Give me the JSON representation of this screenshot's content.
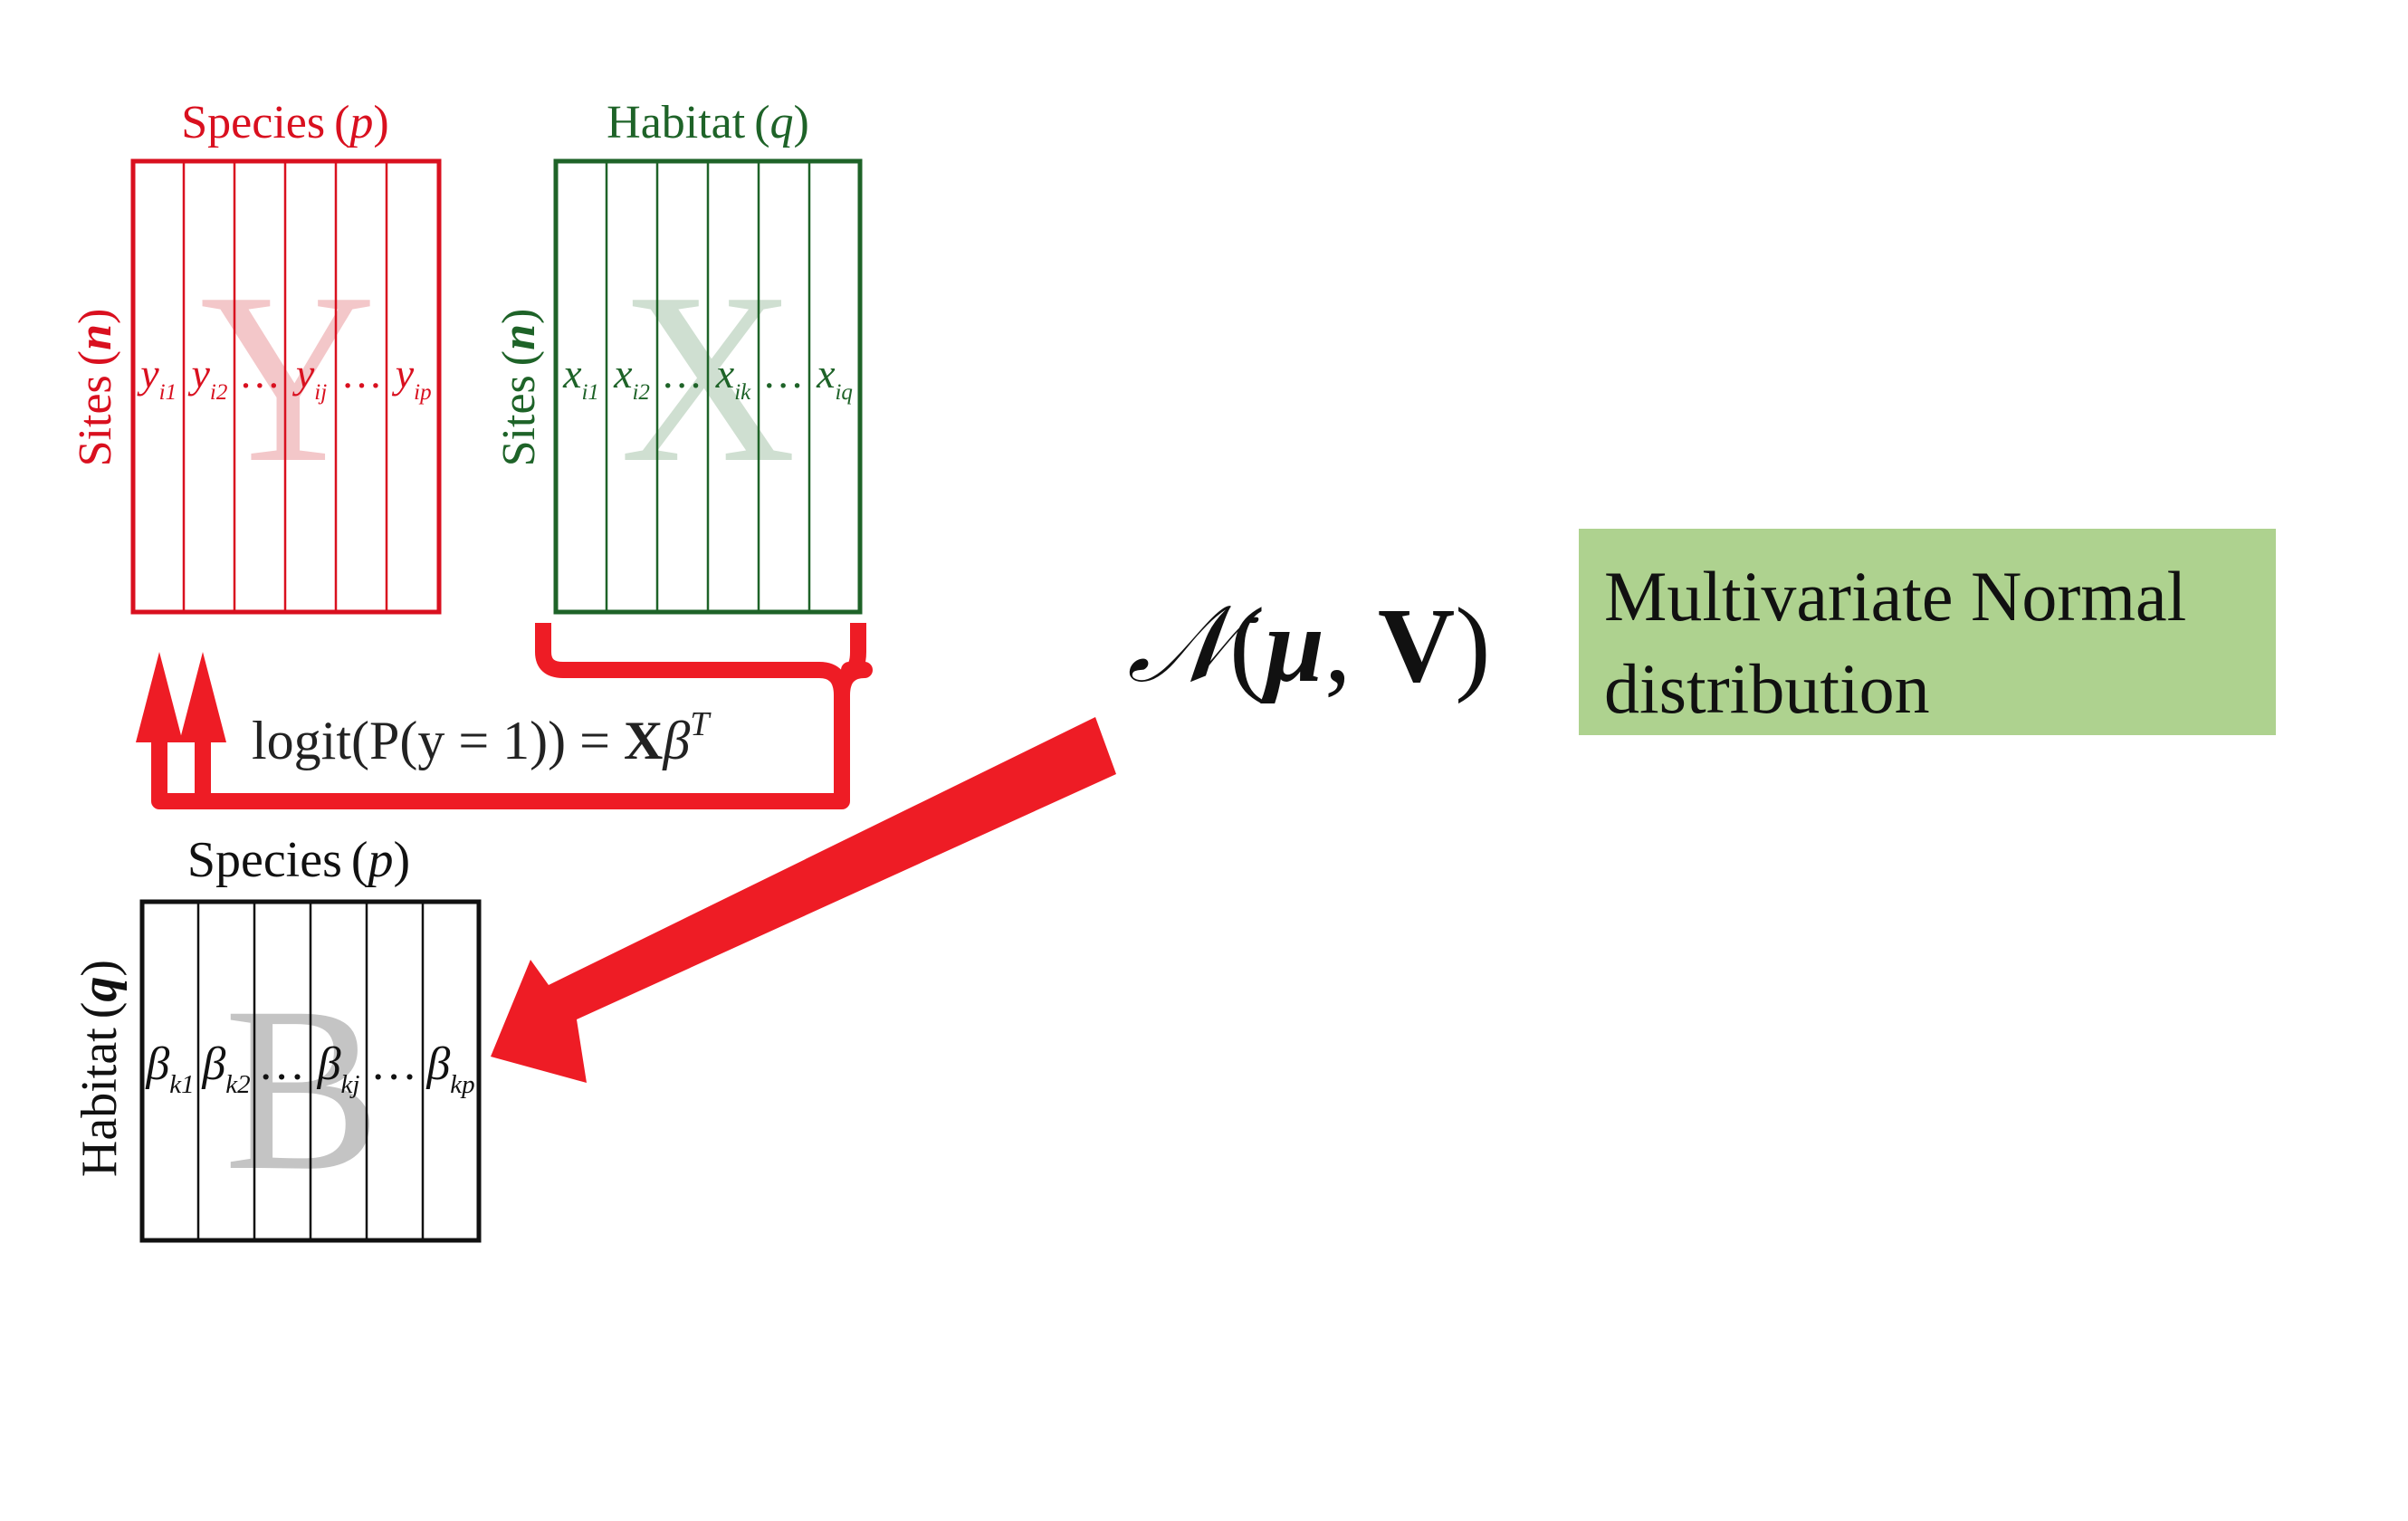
{
  "colors": {
    "y_matrix": "#d9101f",
    "x_matrix": "#1e6328",
    "b_matrix": "#111111",
    "arrow": "#ee1c25",
    "label_box": "#aed28f",
    "y_watermark": "#f3c7c9",
    "x_watermark": "#cfdfd1",
    "b_watermark": "#c4c4c4"
  },
  "y_matrix": {
    "top_label": "Species",
    "top_symbol": "p",
    "side_label": "Sites",
    "side_symbol": "n",
    "watermark": "Y",
    "cells": [
      {
        "base": "y",
        "sub": "i1"
      },
      {
        "base": "y",
        "sub": "i2"
      },
      {
        "base": "…",
        "sub": ""
      },
      {
        "base": "y",
        "sub": "ij"
      },
      {
        "base": "…",
        "sub": ""
      },
      {
        "base": "y",
        "sub": "ip"
      }
    ]
  },
  "x_matrix": {
    "top_label": "Habitat",
    "top_symbol": "q",
    "side_label": "Sites",
    "side_symbol": "n",
    "watermark": "X",
    "cells": [
      {
        "base": "x",
        "sub": "i1"
      },
      {
        "base": "x",
        "sub": "i2"
      },
      {
        "base": "…",
        "sub": ""
      },
      {
        "base": "x",
        "sub": "ik"
      },
      {
        "base": "…",
        "sub": ""
      },
      {
        "base": "x",
        "sub": "iq"
      }
    ]
  },
  "b_matrix": {
    "top_label": "Species",
    "top_symbol": "p",
    "side_label": "Habitat",
    "side_symbol": "q",
    "watermark": "B",
    "cells": [
      {
        "base": "β",
        "sub": "k1"
      },
      {
        "base": "β",
        "sub": "k2"
      },
      {
        "base": "…",
        "sub": ""
      },
      {
        "base": "β",
        "sub": "kj"
      },
      {
        "base": "…",
        "sub": ""
      },
      {
        "base": "β",
        "sub": "kp"
      }
    ]
  },
  "equation": {
    "prefix": "logit",
    "middle": "(P(y = 1)) = ",
    "bold": "X",
    "greek": "β",
    "superscript": "T"
  },
  "distribution": {
    "script": "𝒩",
    "open": "(",
    "mu": "μ",
    "comma": ", ",
    "v": "V",
    "close": ")"
  },
  "label": {
    "line1": "Multivariate Normal",
    "line2": "distribution"
  }
}
